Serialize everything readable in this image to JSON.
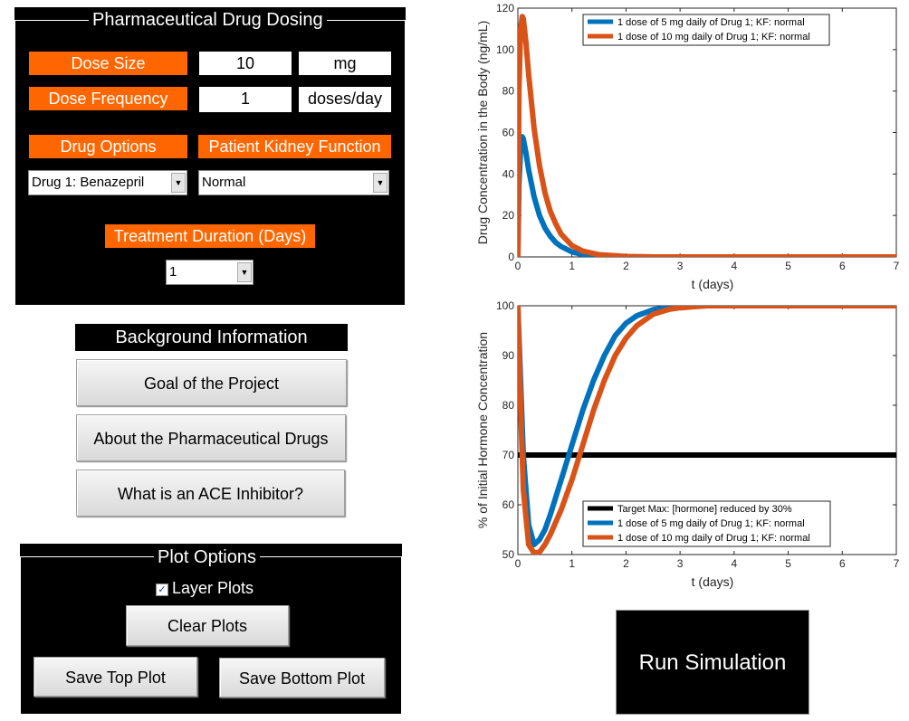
{
  "dosing": {
    "title": "Pharmaceutical Drug Dosing",
    "dose_size_label": "Dose Size",
    "dose_size_value": "10",
    "dose_size_unit": "mg",
    "dose_frequency_label": "Dose Frequency",
    "dose_frequency_value": "1",
    "dose_frequency_unit": "doses/day",
    "drug_options_label": "Drug Options",
    "kidney_function_label": "Patient Kidney Function",
    "drug_selected": "Drug 1: Benazepril",
    "kidney_selected": "Normal",
    "duration_label": "Treatment Duration (Days)",
    "duration_selected": "1"
  },
  "background": {
    "title": "Background Information",
    "goal_button": "Goal of the Project",
    "drugs_button": "About the Pharmaceutical Drugs",
    "ace_button": "What is an ACE Inhibitor?"
  },
  "plot_options": {
    "title": "Plot Options",
    "layer_plots_label": "Layer Plots",
    "layer_plots_checked": true,
    "clear_button": "Clear Plots",
    "save_top_button": "Save Top Plot",
    "save_bottom_button": "Save Bottom Plot"
  },
  "run_button": "Run Simulation",
  "colors": {
    "accent_orange": "#ff6600",
    "series_blue": "#0072bd",
    "series_orange": "#d95319",
    "target_black": "#000000"
  },
  "chart_data": [
    {
      "type": "line",
      "xlabel": "t (days)",
      "ylabel": "Drug Concentration in the Body (ng/mL)",
      "xlim": [
        0,
        7
      ],
      "ylim": [
        0,
        120
      ],
      "xticks": [
        "0",
        "1",
        "2",
        "3",
        "4",
        "5",
        "6",
        "7"
      ],
      "yticks": [
        "0",
        "20",
        "40",
        "60",
        "80",
        "100",
        "120"
      ],
      "legend_position": "top-right",
      "series": [
        {
          "name": "1 dose of 5 mg daily of Drug 1; KF: normal",
          "x": [
            0,
            0.02,
            0.05,
            0.08,
            0.1,
            0.15,
            0.2,
            0.3,
            0.4,
            0.5,
            0.6,
            0.7,
            0.8,
            1.0,
            1.2,
            1.5,
            2.0,
            2.5,
            3.0,
            4.0,
            5.0,
            6.0,
            7.0
          ],
          "values": [
            0,
            35,
            52,
            58,
            57,
            50,
            42,
            29,
            20,
            14,
            10,
            7,
            5,
            2.4,
            1.2,
            0.5,
            0.1,
            0,
            0,
            0,
            0,
            0,
            0
          ]
        },
        {
          "name": "1 dose of 10 mg daily of Drug 1; KF: normal",
          "x": [
            0,
            0.02,
            0.05,
            0.08,
            0.1,
            0.15,
            0.2,
            0.3,
            0.4,
            0.5,
            0.6,
            0.7,
            0.8,
            1.0,
            1.2,
            1.5,
            2.0,
            2.5,
            3.0,
            4.0,
            5.0,
            6.0,
            7.0
          ],
          "values": [
            0,
            80,
            110,
            116,
            115,
            103,
            88,
            62,
            44,
            31,
            22,
            16,
            11,
            5.5,
            2.8,
            1.1,
            0.2,
            0,
            0,
            0,
            0,
            0,
            0
          ]
        }
      ]
    },
    {
      "type": "line",
      "xlabel": "t (days)",
      "ylabel": "% of Initial Hormone Concentration",
      "xlim": [
        0,
        7
      ],
      "ylim": [
        50,
        100
      ],
      "xticks": [
        "0",
        "1",
        "2",
        "3",
        "4",
        "5",
        "6",
        "7"
      ],
      "yticks": [
        "50",
        "60",
        "70",
        "80",
        "90",
        "100"
      ],
      "legend_position": "bottom-right",
      "series": [
        {
          "name": "Target Max: [hormone] reduced by 30%",
          "x": [
            0,
            7
          ],
          "values": [
            70,
            70
          ]
        },
        {
          "name": "1 dose of 5 mg daily of Drug 1; KF: normal",
          "x": [
            0,
            0.05,
            0.1,
            0.2,
            0.3,
            0.4,
            0.5,
            0.6,
            0.8,
            1.0,
            1.2,
            1.4,
            1.6,
            1.8,
            2.0,
            2.2,
            2.5,
            2.8,
            3.0,
            3.5,
            4.0,
            5.0,
            6.0,
            7.0
          ],
          "values": [
            100,
            85,
            70,
            56,
            52,
            53,
            55,
            58,
            65,
            72,
            79,
            85,
            90,
            94,
            96.5,
            98,
            99.2,
            99.7,
            99.9,
            100,
            100,
            100,
            100,
            100
          ]
        },
        {
          "name": "1 dose of 10 mg daily of Drug 1; KF: normal",
          "x": [
            0,
            0.05,
            0.1,
            0.2,
            0.3,
            0.4,
            0.5,
            0.6,
            0.8,
            1.0,
            1.2,
            1.4,
            1.6,
            1.8,
            2.0,
            2.2,
            2.5,
            2.8,
            3.0,
            3.5,
            4.0,
            5.0,
            6.0,
            7.0
          ],
          "values": [
            100,
            80,
            63,
            52,
            50.3,
            50.5,
            52,
            54,
            59,
            65,
            72,
            79,
            85,
            90,
            93.5,
            96,
            98.3,
            99.3,
            99.6,
            100,
            100,
            100,
            100,
            100
          ]
        }
      ]
    }
  ]
}
